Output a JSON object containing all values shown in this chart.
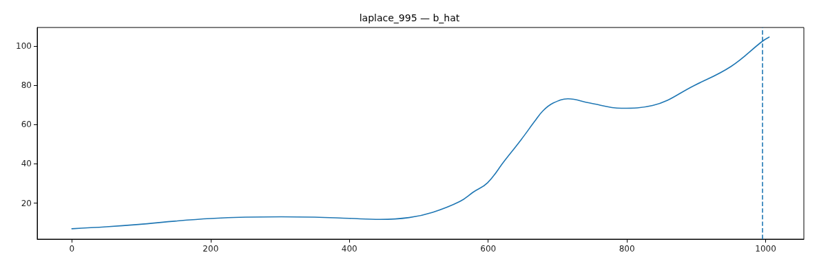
{
  "chart_data": {
    "type": "line",
    "title": "laplace_995 — b_hat",
    "xlim": [
      -50,
      1055
    ],
    "xticks": [
      0,
      200,
      400,
      600,
      800,
      1000
    ],
    "ylim": [
      1.6,
      109.6
    ],
    "yticks": [
      20,
      40,
      60,
      80,
      100
    ],
    "marker": "none",
    "line_style": "solid",
    "series": [
      {
        "color": "#1f77b4",
        "x": [
          0,
          50,
          96,
          152,
          200,
          250,
          302,
          350,
          400,
          444,
          486,
          520,
          559,
          579,
          599,
          623,
          647,
          667,
          679,
          694,
          715,
          746,
          792,
          837,
          897,
          950,
          995,
          1005
        ],
        "values": [
          6.9,
          7.9,
          9.1,
          10.9,
          12.1,
          12.8,
          13.0,
          12.8,
          12.2,
          11.7,
          12.6,
          15.3,
          20.8,
          25.7,
          30.3,
          41.3,
          52.1,
          61.7,
          67.1,
          71.1,
          73.2,
          71.1,
          68.4,
          69.8,
          80.0,
          89.7,
          102.5,
          104.7
        ]
      }
    ],
    "ref_lines": [
      {
        "axis": "x",
        "value": 995,
        "color": "#1f77b4",
        "line_style": "dashed"
      }
    ]
  }
}
